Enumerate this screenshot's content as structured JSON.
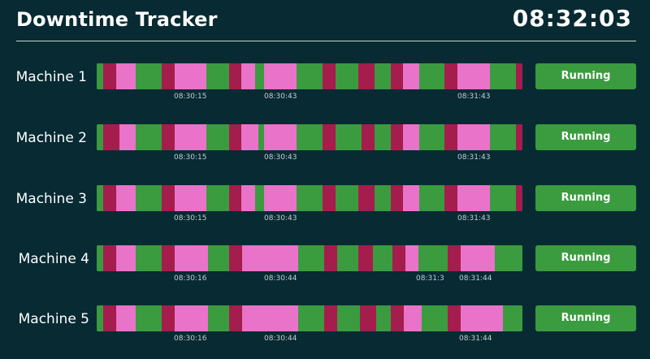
{
  "header": {
    "title": "Downtime Tracker",
    "clock": "08:32:03"
  },
  "colors": {
    "background": "#072a33",
    "running": "#3a9b3f",
    "down": "#a51d4d",
    "idle": "#e873c9"
  },
  "machines": [
    {
      "label": "Machine 1",
      "status": "Running",
      "timeline": [
        {
          "state": "run",
          "from": 0,
          "to": 8
        },
        {
          "state": "down",
          "from": 8,
          "to": 24
        },
        {
          "state": "idle",
          "from": 24,
          "to": 48
        },
        {
          "state": "run",
          "from": 48,
          "to": 80
        },
        {
          "state": "down",
          "from": 80,
          "to": 96
        },
        {
          "state": "idle",
          "from": 96,
          "to": 135
        },
        {
          "state": "run",
          "from": 135,
          "to": 163
        },
        {
          "state": "down",
          "from": 163,
          "to": 178
        },
        {
          "state": "idle",
          "from": 178,
          "to": 195
        },
        {
          "state": "run",
          "from": 195,
          "to": 206
        },
        {
          "state": "idle",
          "from": 206,
          "to": 246
        },
        {
          "state": "run",
          "from": 246,
          "to": 278
        },
        {
          "state": "down",
          "from": 278,
          "to": 294
        },
        {
          "state": "run",
          "from": 294,
          "to": 322
        },
        {
          "state": "down",
          "from": 322,
          "to": 342
        },
        {
          "state": "run",
          "from": 342,
          "to": 362
        },
        {
          "state": "down",
          "from": 362,
          "to": 377
        },
        {
          "state": "idle",
          "from": 377,
          "to": 397
        },
        {
          "state": "run",
          "from": 397,
          "to": 428
        },
        {
          "state": "down",
          "from": 428,
          "to": 444
        },
        {
          "state": "idle",
          "from": 444,
          "to": 484
        },
        {
          "state": "run",
          "from": 484,
          "to": 516
        },
        {
          "state": "down",
          "from": 516,
          "to": 524
        }
      ],
      "ticks": [
        {
          "label": "08:30:15",
          "at": 115
        },
        {
          "label": "08:30:43",
          "at": 226
        },
        {
          "label": "08:31:43",
          "at": 464
        }
      ]
    },
    {
      "label": "Machine 2",
      "status": "Running",
      "timeline": [
        {
          "state": "run",
          "from": 0,
          "to": 8
        },
        {
          "state": "down",
          "from": 8,
          "to": 28
        },
        {
          "state": "idle",
          "from": 28,
          "to": 48
        },
        {
          "state": "run",
          "from": 48,
          "to": 80
        },
        {
          "state": "down",
          "from": 80,
          "to": 96
        },
        {
          "state": "idle",
          "from": 96,
          "to": 135
        },
        {
          "state": "run",
          "from": 135,
          "to": 163
        },
        {
          "state": "down",
          "from": 163,
          "to": 178
        },
        {
          "state": "idle",
          "from": 178,
          "to": 199
        },
        {
          "state": "run",
          "from": 199,
          "to": 206
        },
        {
          "state": "idle",
          "from": 206,
          "to": 246
        },
        {
          "state": "run",
          "from": 246,
          "to": 278
        },
        {
          "state": "down",
          "from": 278,
          "to": 294
        },
        {
          "state": "run",
          "from": 294,
          "to": 326
        },
        {
          "state": "down",
          "from": 326,
          "to": 342
        },
        {
          "state": "run",
          "from": 342,
          "to": 362
        },
        {
          "state": "down",
          "from": 362,
          "to": 377
        },
        {
          "state": "idle",
          "from": 377,
          "to": 397
        },
        {
          "state": "run",
          "from": 397,
          "to": 428
        },
        {
          "state": "down",
          "from": 428,
          "to": 444
        },
        {
          "state": "idle",
          "from": 444,
          "to": 484
        },
        {
          "state": "run",
          "from": 484,
          "to": 516
        },
        {
          "state": "down",
          "from": 516,
          "to": 524
        }
      ],
      "ticks": [
        {
          "label": "08:30:15",
          "at": 115
        },
        {
          "label": "08:30:43",
          "at": 226
        },
        {
          "label": "08:31:43",
          "at": 464
        }
      ]
    },
    {
      "label": "Machine 3",
      "status": "Running",
      "timeline": [
        {
          "state": "run",
          "from": 0,
          "to": 8
        },
        {
          "state": "down",
          "from": 8,
          "to": 24
        },
        {
          "state": "idle",
          "from": 24,
          "to": 48
        },
        {
          "state": "run",
          "from": 48,
          "to": 80
        },
        {
          "state": "down",
          "from": 80,
          "to": 96
        },
        {
          "state": "idle",
          "from": 96,
          "to": 135
        },
        {
          "state": "run",
          "from": 135,
          "to": 163
        },
        {
          "state": "down",
          "from": 163,
          "to": 178
        },
        {
          "state": "idle",
          "from": 178,
          "to": 195
        },
        {
          "state": "run",
          "from": 195,
          "to": 206
        },
        {
          "state": "idle",
          "from": 206,
          "to": 246
        },
        {
          "state": "run",
          "from": 246,
          "to": 278
        },
        {
          "state": "down",
          "from": 278,
          "to": 294
        },
        {
          "state": "run",
          "from": 294,
          "to": 322
        },
        {
          "state": "down",
          "from": 322,
          "to": 342
        },
        {
          "state": "run",
          "from": 342,
          "to": 362
        },
        {
          "state": "down",
          "from": 362,
          "to": 377
        },
        {
          "state": "idle",
          "from": 377,
          "to": 397
        },
        {
          "state": "run",
          "from": 397,
          "to": 428
        },
        {
          "state": "down",
          "from": 428,
          "to": 444
        },
        {
          "state": "idle",
          "from": 444,
          "to": 484
        },
        {
          "state": "run",
          "from": 484,
          "to": 516
        },
        {
          "state": "down",
          "from": 516,
          "to": 524
        }
      ],
      "ticks": [
        {
          "label": "08:30:15",
          "at": 115
        },
        {
          "label": "08:30:43",
          "at": 226
        },
        {
          "label": "08:31:43",
          "at": 464
        }
      ]
    },
    {
      "label": "Machine 4",
      "status": "Running",
      "timeline": [
        {
          "state": "run",
          "from": 0,
          "to": 8
        },
        {
          "state": "down",
          "from": 8,
          "to": 24
        },
        {
          "state": "idle",
          "from": 24,
          "to": 48
        },
        {
          "state": "run",
          "from": 48,
          "to": 80
        },
        {
          "state": "down",
          "from": 80,
          "to": 96
        },
        {
          "state": "idle",
          "from": 96,
          "to": 137
        },
        {
          "state": "run",
          "from": 137,
          "to": 163
        },
        {
          "state": "down",
          "from": 163,
          "to": 179
        },
        {
          "state": "idle",
          "from": 179,
          "to": 248
        },
        {
          "state": "run",
          "from": 248,
          "to": 280
        },
        {
          "state": "down",
          "from": 280,
          "to": 296
        },
        {
          "state": "run",
          "from": 296,
          "to": 322
        },
        {
          "state": "down",
          "from": 322,
          "to": 340
        },
        {
          "state": "run",
          "from": 340,
          "to": 364
        },
        {
          "state": "down",
          "from": 364,
          "to": 380
        },
        {
          "state": "idle",
          "from": 380,
          "to": 396
        },
        {
          "state": "run",
          "from": 396,
          "to": 432
        },
        {
          "state": "down",
          "from": 432,
          "to": 448
        },
        {
          "state": "idle",
          "from": 448,
          "to": 490
        },
        {
          "state": "run",
          "from": 490,
          "to": 524
        }
      ],
      "ticks": [
        {
          "label": "08:30:16",
          "at": 115
        },
        {
          "label": "08:30:44",
          "at": 226
        },
        {
          "label": "08:31:3",
          "at": 413
        },
        {
          "label": "08:31:44",
          "at": 466
        }
      ]
    },
    {
      "label": "Machine 5",
      "status": "Running",
      "timeline": [
        {
          "state": "run",
          "from": 0,
          "to": 8
        },
        {
          "state": "down",
          "from": 8,
          "to": 24
        },
        {
          "state": "idle",
          "from": 24,
          "to": 48
        },
        {
          "state": "run",
          "from": 48,
          "to": 80
        },
        {
          "state": "down",
          "from": 80,
          "to": 96
        },
        {
          "state": "idle",
          "from": 96,
          "to": 137
        },
        {
          "state": "run",
          "from": 137,
          "to": 163
        },
        {
          "state": "down",
          "from": 163,
          "to": 179
        },
        {
          "state": "idle",
          "from": 179,
          "to": 248
        },
        {
          "state": "run",
          "from": 248,
          "to": 280
        },
        {
          "state": "down",
          "from": 280,
          "to": 296
        },
        {
          "state": "run",
          "from": 296,
          "to": 324
        },
        {
          "state": "down",
          "from": 324,
          "to": 344
        },
        {
          "state": "run",
          "from": 344,
          "to": 362
        },
        {
          "state": "down",
          "from": 362,
          "to": 378
        },
        {
          "state": "idle",
          "from": 378,
          "to": 400
        },
        {
          "state": "run",
          "from": 400,
          "to": 432
        },
        {
          "state": "down",
          "from": 432,
          "to": 448
        },
        {
          "state": "idle",
          "from": 448,
          "to": 500
        },
        {
          "state": "run",
          "from": 500,
          "to": 524
        }
      ],
      "ticks": [
        {
          "label": "08:30:16",
          "at": 115
        },
        {
          "label": "08:30:44",
          "at": 226
        },
        {
          "label": "08:31:44",
          "at": 466
        }
      ]
    }
  ]
}
